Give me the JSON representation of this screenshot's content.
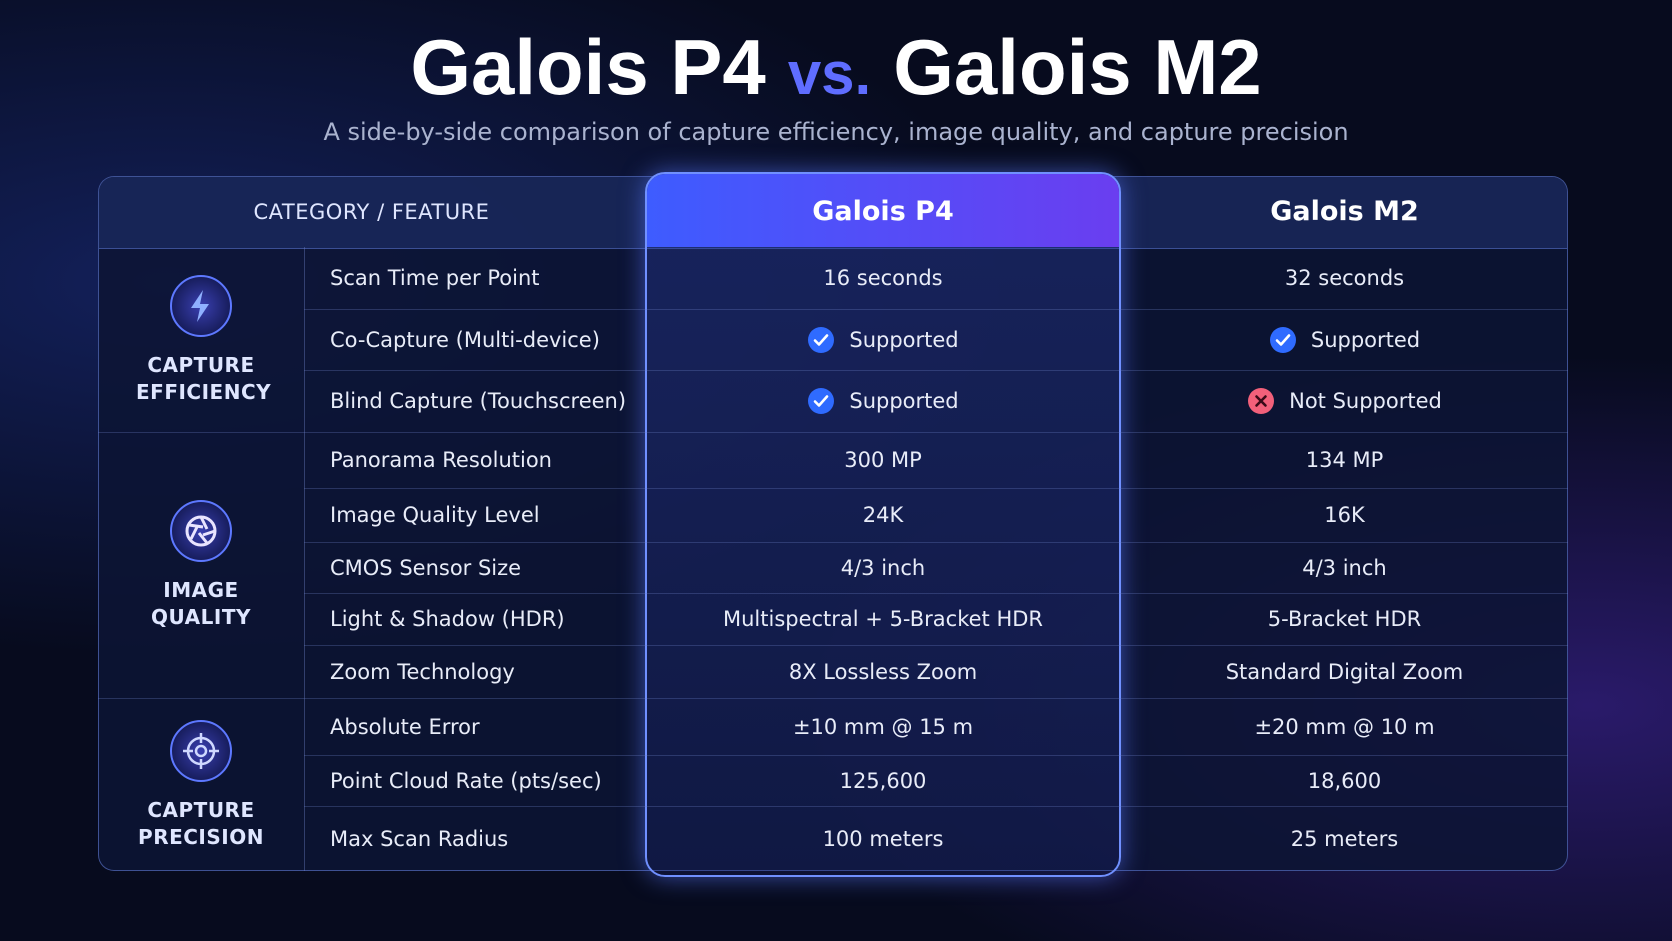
{
  "header": {
    "title_left": "Galois P4",
    "vs": "vs.",
    "title_right": "Galois M2",
    "subtitle": "A side-by-side comparison of capture efficiency, image quality, and capture precision"
  },
  "table": {
    "columns": [
      "CATEGORY / FEATURE",
      "Galois P4",
      "Galois M2"
    ],
    "groups": [
      {
        "name": "CAPTURE EFFICIENCY",
        "rows": [
          [
            "Scan Time per Point",
            "16 seconds",
            "32 seconds"
          ],
          [
            "Co-Capture (Multi-device)",
            "Supported",
            "Supported"
          ],
          [
            "Blind Capture (Touchscreen)",
            "Supported",
            "Not Supported"
          ]
        ]
      },
      {
        "name": "IMAGE QUALITY",
        "rows": [
          [
            "Panorama Resolution",
            "300 MP",
            "134 MP"
          ],
          [
            "Image Quality Level",
            "24K",
            "16K"
          ],
          [
            "CMOS Sensor Size",
            "4/3 inch",
            "4/3 inch"
          ],
          [
            "Light & Shadow (HDR)",
            "Multispectral + 5-Bracket HDR",
            "5-Bracket HDR"
          ],
          [
            "Zoom Technology",
            "8X Lossless Zoom",
            "Standard Digital Zoom"
          ]
        ]
      },
      {
        "name": "CAPTURE PRECISION",
        "rows": [
          [
            "Absolute Error",
            "±10 mm @ 15 m",
            "±20 mm @ 10 m"
          ],
          [
            "Point Cloud Rate (pts/sec)",
            "125,600",
            "18,600"
          ],
          [
            "Max Scan Radius",
            "100 meters",
            "25 meters"
          ]
        ]
      }
    ]
  }
}
